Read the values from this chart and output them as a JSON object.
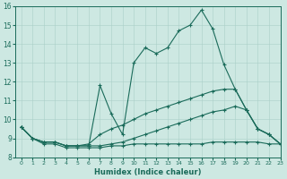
{
  "xlabel": "Humidex (Indice chaleur)",
  "background_color": "#cde8e2",
  "line_color": "#1a6b5a",
  "grid_color": "#aacfc8",
  "xlim": [
    -0.5,
    23
  ],
  "ylim": [
    8,
    16
  ],
  "yticks": [
    8,
    9,
    10,
    11,
    12,
    13,
    14,
    15,
    16
  ],
  "xticks": [
    0,
    1,
    2,
    3,
    4,
    5,
    6,
    7,
    8,
    9,
    10,
    11,
    12,
    13,
    14,
    15,
    16,
    17,
    18,
    19,
    20,
    21,
    22,
    23
  ],
  "series": [
    {
      "x": [
        0,
        1,
        2,
        3,
        4,
        5,
        6,
        7,
        8,
        9,
        10,
        11,
        12,
        13,
        14,
        15,
        16,
        17,
        18,
        19,
        20,
        21,
        22,
        23
      ],
      "y": [
        9.6,
        9.0,
        8.8,
        8.8,
        8.6,
        8.6,
        8.6,
        11.8,
        10.3,
        9.2,
        13.0,
        13.8,
        13.5,
        13.8,
        14.7,
        15.0,
        15.8,
        14.8,
        12.9,
        11.6,
        10.5,
        9.5,
        9.2,
        8.7
      ]
    },
    {
      "x": [
        0,
        1,
        2,
        3,
        4,
        5,
        6,
        7,
        8,
        9,
        10,
        11,
        12,
        13,
        14,
        15,
        16,
        17,
        18,
        19,
        20,
        21,
        22,
        23
      ],
      "y": [
        9.6,
        9.0,
        8.8,
        8.8,
        8.6,
        8.6,
        8.7,
        9.2,
        9.5,
        9.7,
        10.0,
        10.3,
        10.5,
        10.7,
        10.9,
        11.1,
        11.3,
        11.5,
        11.6,
        11.6,
        10.5,
        9.5,
        9.2,
        8.7
      ]
    },
    {
      "x": [
        0,
        1,
        2,
        3,
        4,
        5,
        6,
        7,
        8,
        9,
        10,
        11,
        12,
        13,
        14,
        15,
        16,
        17,
        18,
        19,
        20,
        21,
        22,
        23
      ],
      "y": [
        9.6,
        9.0,
        8.8,
        8.8,
        8.6,
        8.6,
        8.6,
        8.6,
        8.7,
        8.8,
        9.0,
        9.2,
        9.4,
        9.6,
        9.8,
        10.0,
        10.2,
        10.4,
        10.5,
        10.7,
        10.5,
        9.5,
        9.2,
        8.7
      ]
    },
    {
      "x": [
        0,
        1,
        2,
        3,
        4,
        5,
        6,
        7,
        8,
        9,
        10,
        11,
        12,
        13,
        14,
        15,
        16,
        17,
        18,
        19,
        20,
        21,
        22,
        23
      ],
      "y": [
        9.6,
        9.0,
        8.7,
        8.7,
        8.5,
        8.5,
        8.5,
        8.5,
        8.6,
        8.6,
        8.7,
        8.7,
        8.7,
        8.7,
        8.7,
        8.7,
        8.7,
        8.8,
        8.8,
        8.8,
        8.8,
        8.8,
        8.7,
        8.7
      ]
    }
  ]
}
